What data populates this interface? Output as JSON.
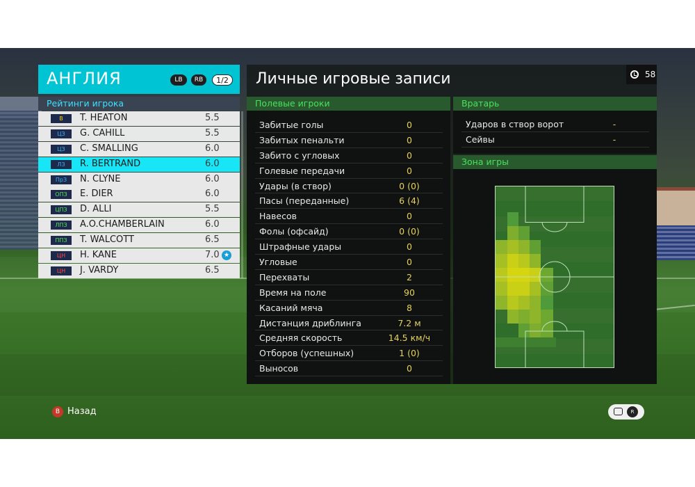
{
  "team": {
    "name": "АНГЛИЯ",
    "lb_label": "LB",
    "rb_label": "RB",
    "page": "1/2",
    "ratings_title": "Рейтинги игрока",
    "colors": {
      "header": "#00c4d4",
      "selected_row": "#18e6f6"
    }
  },
  "players": [
    {
      "pos": "В",
      "pos_group": "gk",
      "name": "T. HEATON",
      "rating": "5.5",
      "selected": false,
      "star": false
    },
    {
      "pos": "ЦЗ",
      "pos_group": "def",
      "name": "G. CAHILL",
      "rating": "5.5",
      "selected": false,
      "star": false
    },
    {
      "pos": "ЦЗ",
      "pos_group": "def",
      "name": "C. SMALLING",
      "rating": "6.0",
      "selected": false,
      "star": false
    },
    {
      "pos": "ЛЗ",
      "pos_group": "def",
      "name": "R. BERTRAND",
      "rating": "6.0",
      "selected": true,
      "star": false
    },
    {
      "pos": "ПрЗ",
      "pos_group": "def",
      "name": "N. CLYNE",
      "rating": "6.0",
      "selected": false,
      "star": false
    },
    {
      "pos": "ОПЗ",
      "pos_group": "mid",
      "name": "E. DIER",
      "rating": "6.0",
      "selected": false,
      "star": false
    },
    {
      "pos": "ЦПЗ",
      "pos_group": "mid",
      "name": "D. ALLI",
      "rating": "5.5",
      "selected": false,
      "star": false
    },
    {
      "pos": "ЛПЗ",
      "pos_group": "mid",
      "name": "A.O.CHAMBERLAIN",
      "rating": "6.0",
      "selected": false,
      "star": false
    },
    {
      "pos": "ППЗ",
      "pos_group": "mid",
      "name": "T. WALCOTT",
      "rating": "6.5",
      "selected": false,
      "star": false
    },
    {
      "pos": "ЦН",
      "pos_group": "fwd",
      "name": "H. KANE",
      "rating": "7.0",
      "selected": false,
      "star": true
    },
    {
      "pos": "ЦН",
      "pos_group": "fwd",
      "name": "J. VARDY",
      "rating": "6.5",
      "selected": false,
      "star": false
    }
  ],
  "main": {
    "title": "Личные игровые записи",
    "timer": "58",
    "field_section": "Полевые игроки",
    "gk_section": "Вратарь",
    "zone_section": "Зона игры"
  },
  "field_stats": [
    {
      "label": "Забитые голы",
      "value": "0"
    },
    {
      "label": "Забитых пенальти",
      "value": "0"
    },
    {
      "label": "Забито с угловых",
      "value": "0"
    },
    {
      "label": "Голевые передачи",
      "value": "0"
    },
    {
      "label": "Удары (в створ)",
      "value": "0 (0)"
    },
    {
      "label": "Пасы (переданные)",
      "value": "6 (4)"
    },
    {
      "label": "Навесов",
      "value": "0"
    },
    {
      "label": "Фолы (офсайд)",
      "value": "0 (0)"
    },
    {
      "label": "Штрафные удары",
      "value": "0"
    },
    {
      "label": "Угловые",
      "value": "0"
    },
    {
      "label": "Перехваты",
      "value": "2"
    },
    {
      "label": "Время на поле",
      "value": "90"
    },
    {
      "label": "Касаний мяча",
      "value": "8"
    },
    {
      "label": "Дистанция дриблинга",
      "value": "7.2 м"
    },
    {
      "label": "Средняя скорость",
      "value": "14.5 км/ч"
    },
    {
      "label": "Отборов (успешных)",
      "value": "1 (0)"
    },
    {
      "label": "Выносов",
      "value": "0"
    }
  ],
  "gk_stats": [
    {
      "label": "Ударов в створ ворот",
      "value": "-"
    },
    {
      "label": "Сейвы",
      "value": "-"
    }
  ],
  "footer": {
    "back_label": "Назад",
    "back_button": "B",
    "rs_button": "R"
  }
}
